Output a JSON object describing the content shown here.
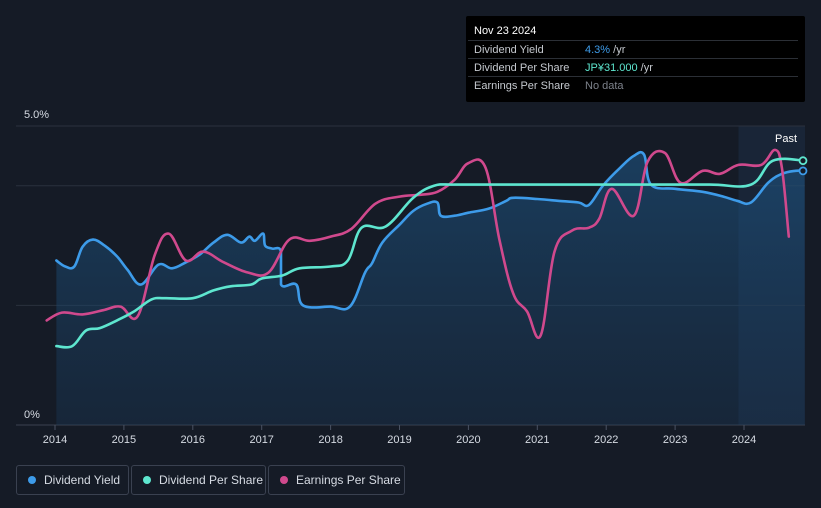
{
  "tooltip": {
    "date": "Nov 23 2024",
    "rows": [
      {
        "label": "Dividend Yield",
        "value": "4.3%",
        "unit": " /yr",
        "color": "#3d9be9"
      },
      {
        "label": "Dividend Per Share",
        "value": "JP¥31.000",
        "unit": " /yr",
        "color": "#5ee6cf"
      },
      {
        "label": "Earnings Per Share",
        "value": "No data",
        "unit": "",
        "color": "#7d828b"
      }
    ]
  },
  "legend": [
    {
      "label": "Dividend Yield",
      "color": "#3d9be9"
    },
    {
      "label": "Dividend Per Share",
      "color": "#5ee6cf"
    },
    {
      "label": "Earnings Per Share",
      "color": "#d0498d"
    }
  ],
  "chart_data": {
    "type": "line",
    "x_ticks": [
      "2014",
      "2015",
      "2016",
      "2017",
      "2018",
      "2019",
      "2020",
      "2021",
      "2022",
      "2023",
      "2024"
    ],
    "xlim": [
      2013.7,
      2024.9
    ],
    "y_label_top": "5.0%",
    "y_label_bottom": "0%",
    "ylim": [
      0,
      5.0
    ],
    "past_label": "Past",
    "forecast_start": 2023.92,
    "series": [
      {
        "name": "Dividend Yield",
        "color": "#3d9be9",
        "fill": true,
        "points": [
          [
            2014.02,
            2.75
          ],
          [
            2014.15,
            2.65
          ],
          [
            2014.28,
            2.65
          ],
          [
            2014.4,
            2.98
          ],
          [
            2014.55,
            3.1
          ],
          [
            2014.72,
            3.0
          ],
          [
            2014.9,
            2.82
          ],
          [
            2015.05,
            2.6
          ],
          [
            2015.25,
            2.35
          ],
          [
            2015.5,
            2.68
          ],
          [
            2015.7,
            2.62
          ],
          [
            2015.9,
            2.72
          ],
          [
            2016.1,
            2.85
          ],
          [
            2016.3,
            3.05
          ],
          [
            2016.5,
            3.18
          ],
          [
            2016.7,
            3.05
          ],
          [
            2016.82,
            3.15
          ],
          [
            2016.9,
            3.08
          ],
          [
            2017.02,
            3.2
          ],
          [
            2017.05,
            3.0
          ],
          [
            2017.15,
            2.95
          ],
          [
            2017.28,
            2.9
          ],
          [
            2017.28,
            2.35
          ],
          [
            2017.5,
            2.35
          ],
          [
            2017.6,
            2.0
          ],
          [
            2018.0,
            1.98
          ],
          [
            2018.28,
            1.98
          ],
          [
            2018.5,
            2.55
          ],
          [
            2018.6,
            2.7
          ],
          [
            2018.75,
            3.05
          ],
          [
            2019.0,
            3.35
          ],
          [
            2019.2,
            3.58
          ],
          [
            2019.4,
            3.7
          ],
          [
            2019.55,
            3.72
          ],
          [
            2019.6,
            3.5
          ],
          [
            2019.8,
            3.5
          ],
          [
            2020.0,
            3.55
          ],
          [
            2020.3,
            3.62
          ],
          [
            2020.55,
            3.75
          ],
          [
            2020.65,
            3.8
          ],
          [
            2021.0,
            3.78
          ],
          [
            2021.3,
            3.75
          ],
          [
            2021.6,
            3.72
          ],
          [
            2021.75,
            3.68
          ],
          [
            2021.95,
            4.0
          ],
          [
            2022.2,
            4.3
          ],
          [
            2022.4,
            4.5
          ],
          [
            2022.55,
            4.52
          ],
          [
            2022.65,
            4.02
          ],
          [
            2023.0,
            3.95
          ],
          [
            2023.4,
            3.9
          ],
          [
            2023.7,
            3.82
          ],
          [
            2023.9,
            3.75
          ],
          [
            2024.1,
            3.72
          ],
          [
            2024.35,
            4.05
          ],
          [
            2024.55,
            4.2
          ],
          [
            2024.75,
            4.25
          ],
          [
            2024.88,
            4.25
          ]
        ]
      },
      {
        "name": "Dividend Per Share",
        "color": "#5ee6cf",
        "fill": false,
        "points": [
          [
            2014.02,
            1.32
          ],
          [
            2014.25,
            1.32
          ],
          [
            2014.45,
            1.58
          ],
          [
            2014.65,
            1.62
          ],
          [
            2014.9,
            1.75
          ],
          [
            2015.15,
            1.9
          ],
          [
            2015.4,
            2.1
          ],
          [
            2015.6,
            2.12
          ],
          [
            2016.0,
            2.12
          ],
          [
            2016.3,
            2.25
          ],
          [
            2016.55,
            2.32
          ],
          [
            2016.85,
            2.35
          ],
          [
            2017.0,
            2.45
          ],
          [
            2017.3,
            2.5
          ],
          [
            2017.55,
            2.62
          ],
          [
            2018.0,
            2.65
          ],
          [
            2018.25,
            2.75
          ],
          [
            2018.45,
            3.3
          ],
          [
            2018.8,
            3.32
          ],
          [
            2019.2,
            3.8
          ],
          [
            2019.5,
            4.0
          ],
          [
            2019.8,
            4.02
          ],
          [
            2020.5,
            4.02
          ],
          [
            2021.5,
            4.02
          ],
          [
            2022.5,
            4.02
          ],
          [
            2023.5,
            4.02
          ],
          [
            2024.1,
            4.02
          ],
          [
            2024.42,
            4.42
          ],
          [
            2024.88,
            4.42
          ]
        ]
      },
      {
        "name": "Earnings Per Share",
        "color": "#d0498d",
        "fill": false,
        "points": [
          [
            2013.88,
            1.75
          ],
          [
            2014.1,
            1.88
          ],
          [
            2014.4,
            1.85
          ],
          [
            2014.7,
            1.92
          ],
          [
            2014.95,
            1.98
          ],
          [
            2015.2,
            1.82
          ],
          [
            2015.45,
            2.85
          ],
          [
            2015.65,
            3.2
          ],
          [
            2015.9,
            2.75
          ],
          [
            2016.15,
            2.9
          ],
          [
            2016.45,
            2.72
          ],
          [
            2016.8,
            2.55
          ],
          [
            2017.1,
            2.55
          ],
          [
            2017.4,
            3.1
          ],
          [
            2017.7,
            3.08
          ],
          [
            2018.0,
            3.15
          ],
          [
            2018.3,
            3.28
          ],
          [
            2018.65,
            3.7
          ],
          [
            2019.0,
            3.82
          ],
          [
            2019.3,
            3.85
          ],
          [
            2019.55,
            3.9
          ],
          [
            2019.8,
            4.1
          ],
          [
            2020.0,
            4.38
          ],
          [
            2020.25,
            4.3
          ],
          [
            2020.45,
            3.1
          ],
          [
            2020.65,
            2.2
          ],
          [
            2020.85,
            1.9
          ],
          [
            2021.05,
            1.5
          ],
          [
            2021.25,
            2.9
          ],
          [
            2021.5,
            3.25
          ],
          [
            2021.75,
            3.3
          ],
          [
            2021.9,
            3.45
          ],
          [
            2022.08,
            3.95
          ],
          [
            2022.4,
            3.5
          ],
          [
            2022.6,
            4.4
          ],
          [
            2022.85,
            4.55
          ],
          [
            2023.08,
            4.05
          ],
          [
            2023.4,
            4.25
          ],
          [
            2023.65,
            4.2
          ],
          [
            2023.92,
            4.35
          ],
          [
            2024.25,
            4.35
          ],
          [
            2024.45,
            4.6
          ],
          [
            2024.55,
            4.3
          ],
          [
            2024.65,
            3.15
          ]
        ]
      }
    ]
  }
}
